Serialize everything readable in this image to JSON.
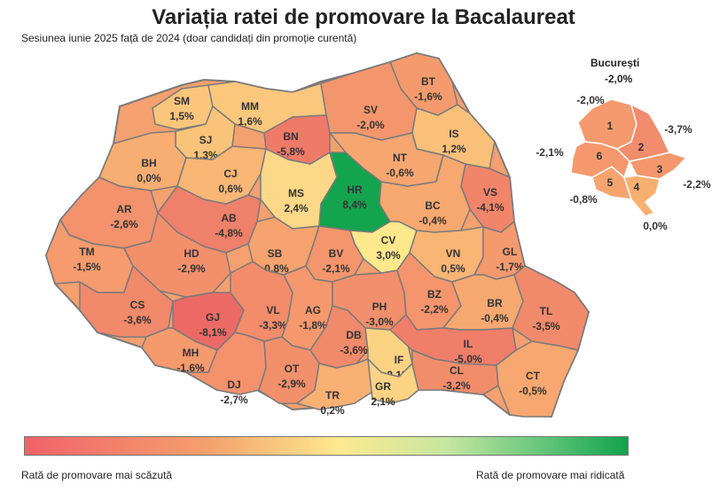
{
  "title": "Variația ratei de promovare la Bacalaureat",
  "subtitle": "Sesiunea iunie 2025 față de 2024 (doar candidați din promoție curentă)",
  "bucharest": {
    "title": "București",
    "total": "-2,0%",
    "sectors": [
      {
        "id": "1",
        "value": "-2,0%",
        "color": "#f5996e"
      },
      {
        "id": "2",
        "value": "-3,7%",
        "color": "#f18c6c"
      },
      {
        "id": "3",
        "value": "-2,2%",
        "color": "#f4976d"
      },
      {
        "id": "4",
        "value": "0,0%",
        "color": "#f8b070"
      },
      {
        "id": "5",
        "value": "-0,8%",
        "color": "#f6a46e"
      },
      {
        "id": "6",
        "value": "-2,1%",
        "color": "#f5986e"
      }
    ]
  },
  "legend": {
    "low_label": "Rată de promovare mai scăzută",
    "high_label": "Rată de promovare mai ridicată"
  },
  "counties": [
    {
      "code": "SM",
      "value": "1,5%",
      "color": "#fbc67c"
    },
    {
      "code": "MM",
      "value": "1,6%",
      "color": "#fbc77d"
    },
    {
      "code": "BT",
      "value": "-1,6%",
      "color": "#f59a6d"
    },
    {
      "code": "SV",
      "value": "-2,0%",
      "color": "#f4966d"
    },
    {
      "code": "SJ",
      "value": "1,3%",
      "color": "#fac37a"
    },
    {
      "code": "BN",
      "value": "-5,8%",
      "color": "#ef7a68"
    },
    {
      "code": "IS",
      "value": "1,2%",
      "color": "#fac07a"
    },
    {
      "code": "BH",
      "value": "0,0%",
      "color": "#f8ad72"
    },
    {
      "code": "CJ",
      "value": "0,6%",
      "color": "#f9b675"
    },
    {
      "code": "NT",
      "value": "-0,6%",
      "color": "#f7a670"
    },
    {
      "code": "MS",
      "value": "2,4%",
      "color": "#fdd888"
    },
    {
      "code": "HR",
      "value": "8,4%",
      "color": "#14a34e"
    },
    {
      "code": "VS",
      "value": "-4,1%",
      "color": "#f0856a"
    },
    {
      "code": "AR",
      "value": "-2,6%",
      "color": "#f3926c"
    },
    {
      "code": "AB",
      "value": "-4,8%",
      "color": "#ef806a"
    },
    {
      "code": "BC",
      "value": "-0,4%",
      "color": "#f7a870"
    },
    {
      "code": "CV",
      "value": "3,0%",
      "color": "#fee88c"
    },
    {
      "code": "TM",
      "value": "-1,5%",
      "color": "#f59b6e"
    },
    {
      "code": "HD",
      "value": "-2,9%",
      "color": "#f3906c"
    },
    {
      "code": "SB",
      "value": "-0,8%",
      "color": "#f6a36f"
    },
    {
      "code": "BV",
      "value": "-2,1%",
      "color": "#f4956d"
    },
    {
      "code": "VN",
      "value": "0,5%",
      "color": "#f9b574"
    },
    {
      "code": "GL",
      "value": "-1,7%",
      "color": "#f5996e"
    },
    {
      "code": "CS",
      "value": "-3,6%",
      "color": "#f1896b"
    },
    {
      "code": "GJ",
      "value": "-8,1%",
      "color": "#ec6a66"
    },
    {
      "code": "VL",
      "value": "-3,3%",
      "color": "#f28c6b"
    },
    {
      "code": "AG",
      "value": "-1,8%",
      "color": "#f5986d"
    },
    {
      "code": "PH",
      "value": "-3,0%",
      "color": "#f28f6c"
    },
    {
      "code": "BZ",
      "value": "-2,2%",
      "color": "#f4956d"
    },
    {
      "code": "BR",
      "value": "-0,4%",
      "color": "#f7a870"
    },
    {
      "code": "TL",
      "value": "-3,5%",
      "color": "#f18a6b"
    },
    {
      "code": "DB",
      "value": "-3,6%",
      "color": "#f1896b"
    },
    {
      "code": "IF",
      "value": "2,1%",
      "color": "#fcd383"
    },
    {
      "code": "IL",
      "value": "-5,0%",
      "color": "#f07e69"
    },
    {
      "code": "MH",
      "value": "-1,6%",
      "color": "#f59a6d"
    },
    {
      "code": "DJ",
      "value": "-2,7%",
      "color": "#f3926c"
    },
    {
      "code": "OT",
      "value": "-2,9%",
      "color": "#f3906c"
    },
    {
      "code": "TR",
      "value": "0,2%",
      "color": "#f8b073"
    },
    {
      "code": "GR",
      "value": "2,1%",
      "color": "#fcd383"
    },
    {
      "code": "CL",
      "value": "-3,2%",
      "color": "#f28d6b"
    },
    {
      "code": "CT",
      "value": "-0,5%",
      "color": "#f7a76f"
    }
  ]
}
